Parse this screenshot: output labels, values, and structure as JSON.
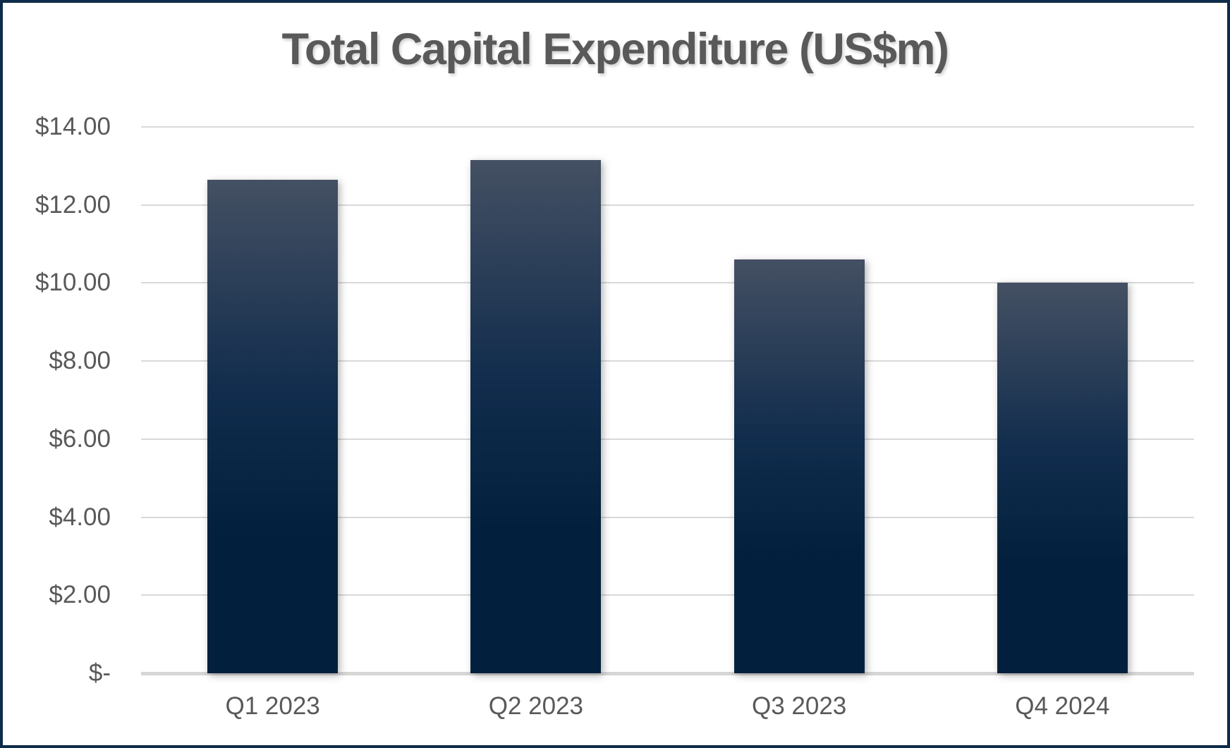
{
  "chart_data": {
    "type": "bar",
    "title": "Total Capital Expenditure (US$m)",
    "categories": [
      "Q1 2023",
      "Q2 2023",
      "Q3 2023",
      "Q4 2024"
    ],
    "values": [
      12.65,
      13.15,
      10.6,
      10.0
    ],
    "xlabel": "",
    "ylabel": "",
    "ylim": [
      0,
      14
    ],
    "ytick_step": 2,
    "ytick_labels_bottom_to_top": [
      "$-",
      "$2.00",
      "$4.00",
      "$6.00",
      "$8.00",
      "$10.00",
      "$12.00",
      "$14.00"
    ],
    "grid": true,
    "legend": false,
    "colors": {
      "bar_top": "#445063",
      "bar_mid": "#122d4d",
      "bar_bottom": "#02203d",
      "title": "#595959",
      "text": "#595959",
      "gridline": "#d9d9d9",
      "axis_line": "#d6d6d6",
      "border": "#0e2b49",
      "background": "#ffffff"
    }
  }
}
